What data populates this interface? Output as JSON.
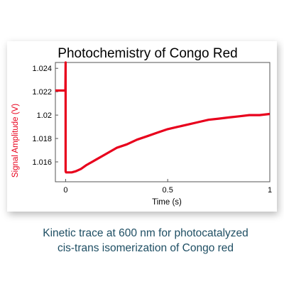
{
  "caption": {
    "line1": "Kinetic trace at 600 nm for photocatalyzed",
    "line2": "cis-trans isomerization of Congo red"
  },
  "chart_data": {
    "type": "line",
    "title": "Photochemistry of Congo Red",
    "xlabel": "Time (s)",
    "ylabel": "Signal Amplitude (V)",
    "xlim": [
      -0.05,
      1.0
    ],
    "ylim": [
      1.0143,
      1.0245
    ],
    "x_ticks": [
      0,
      0.5,
      1
    ],
    "x_tick_labels": [
      "0",
      "0.5",
      "1"
    ],
    "y_ticks": [
      1.016,
      1.018,
      1.02,
      1.022,
      1.024
    ],
    "y_tick_labels": [
      "1.016",
      "1.018",
      "1.02",
      "1.022",
      "1.024"
    ],
    "grid": false,
    "legend": "none",
    "series_color": "#e8001c",
    "series": [
      {
        "x": [
          -0.05,
          -0.04,
          -0.03,
          -0.02,
          -0.01,
          -0.001,
          0.0,
          0.0,
          0.002,
          0.01,
          0.02,
          0.03,
          0.05,
          0.075,
          0.1,
          0.15,
          0.2,
          0.25,
          0.3,
          0.35,
          0.4,
          0.45,
          0.5,
          0.55,
          0.6,
          0.65,
          0.7,
          0.75,
          0.8,
          0.85,
          0.9,
          0.95,
          1.0
        ],
        "y": [
          1.0221,
          1.0221,
          1.0221,
          1.0221,
          1.0221,
          1.0221,
          1.0245,
          1.0152,
          1.0151,
          1.0151,
          1.0151,
          1.0151,
          1.0152,
          1.0154,
          1.0157,
          1.0162,
          1.0167,
          1.0172,
          1.0175,
          1.0179,
          1.0182,
          1.0185,
          1.0188,
          1.019,
          1.0192,
          1.0194,
          1.0196,
          1.0197,
          1.0198,
          1.0199,
          1.02,
          1.02,
          1.0201
        ]
      }
    ]
  }
}
